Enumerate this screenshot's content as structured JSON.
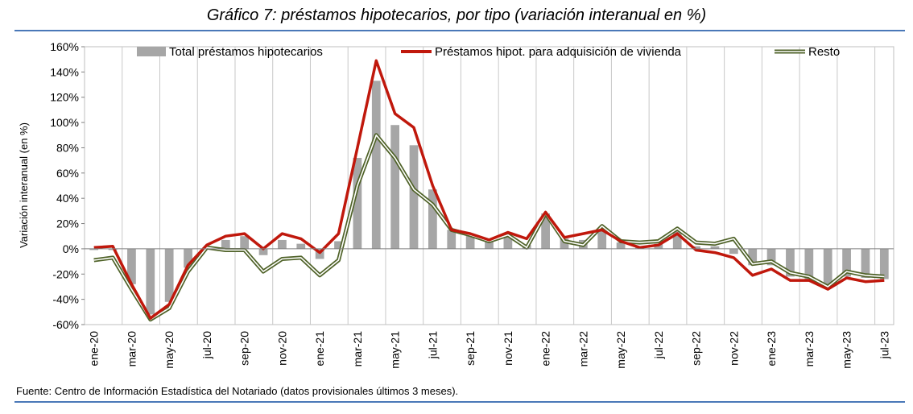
{
  "title": "Gráfico 7: préstamos hipotecarios, por tipo (variación interanual en %)",
  "source": "Fuente: Centro de Información Estadística del Notariado (datos provisionales últimos 3 meses).",
  "colors": {
    "bars": "#a6a6a6",
    "adquisicion": "#c0180c",
    "resto": "#4f6228",
    "grid": "#c8c8c8",
    "rule": "#4a78b8"
  },
  "chart_data": {
    "type": "bar",
    "ylabel": "Variación interanual (en %)",
    "ylim": [
      -60,
      160
    ],
    "yticks": [
      -60,
      -40,
      -20,
      0,
      20,
      40,
      60,
      80,
      100,
      120,
      140,
      160
    ],
    "ytick_labels": [
      "-60%",
      "-40%",
      "-20%",
      "0%",
      "20%",
      "40%",
      "60%",
      "80%",
      "100%",
      "120%",
      "140%",
      "160%"
    ],
    "grid": "vertical",
    "legend": "top",
    "x": [
      "ene-20",
      "feb-20",
      "mar-20",
      "abr-20",
      "may-20",
      "jun-20",
      "jul-20",
      "ago-20",
      "sep-20",
      "oct-20",
      "nov-20",
      "dic-20",
      "ene-21",
      "feb-21",
      "mar-21",
      "abr-21",
      "may-21",
      "jun-21",
      "jul-21",
      "ago-21",
      "sep-21",
      "oct-21",
      "nov-21",
      "dic-21",
      "ene-22",
      "feb-22",
      "mar-22",
      "abr-22",
      "may-22",
      "jun-22",
      "jul-22",
      "ago-22",
      "sep-22",
      "oct-22",
      "nov-22",
      "dic-22",
      "ene-23",
      "feb-23",
      "mar-23",
      "abr-23",
      "may-23",
      "jun-23",
      "jul-23"
    ],
    "xtick_labels": [
      "ene-20",
      "mar-20",
      "may-20",
      "jul-20",
      "sep-20",
      "nov-20",
      "ene-21",
      "mar-21",
      "may-21",
      "jul-21",
      "sep-21",
      "nov-21",
      "ene-22",
      "mar-22",
      "may-22",
      "jul-22",
      "sep-22",
      "nov-22",
      "ene-23",
      "mar-23",
      "may-23",
      "jul-23"
    ],
    "series": [
      {
        "name": "Total préstamos hipotecarios",
        "kind": "bar",
        "values": [
          -1,
          -1,
          -28,
          -52,
          -42,
          -15,
          1,
          7,
          10,
          -5,
          7,
          4,
          -8,
          6,
          72,
          133,
          98,
          82,
          47,
          15,
          11,
          8,
          10,
          3,
          28,
          8,
          7,
          15,
          5,
          2,
          4,
          14,
          2,
          2,
          -4,
          -13,
          -13,
          -22,
          -24,
          -29,
          -22,
          -23,
          -24
        ]
      },
      {
        "name": "Préstamos hipot. para adquisición de vivienda",
        "kind": "line",
        "values": [
          1,
          2,
          -28,
          -55,
          -44,
          -13,
          3,
          10,
          12,
          0,
          12,
          8,
          -3,
          12,
          80,
          149,
          107,
          96,
          50,
          15,
          12,
          7,
          13,
          8,
          29,
          9,
          12,
          15,
          6,
          1,
          3,
          12,
          -1,
          -3,
          -7,
          -21,
          -16,
          -25,
          -25,
          -32,
          -23,
          -26,
          -25
        ]
      },
      {
        "name": "Resto",
        "kind": "line",
        "values": [
          -9,
          -7,
          -32,
          -56,
          -47,
          -18,
          1,
          -1,
          -1,
          -18,
          -8,
          -7,
          -21,
          -9,
          50,
          90,
          72,
          47,
          35,
          15,
          11,
          6,
          11,
          1,
          28,
          6,
          3,
          18,
          6,
          5,
          6,
          16,
          5,
          4,
          8,
          -12,
          -10,
          -19,
          -22,
          -30,
          -18,
          -21,
          -22
        ]
      }
    ]
  }
}
